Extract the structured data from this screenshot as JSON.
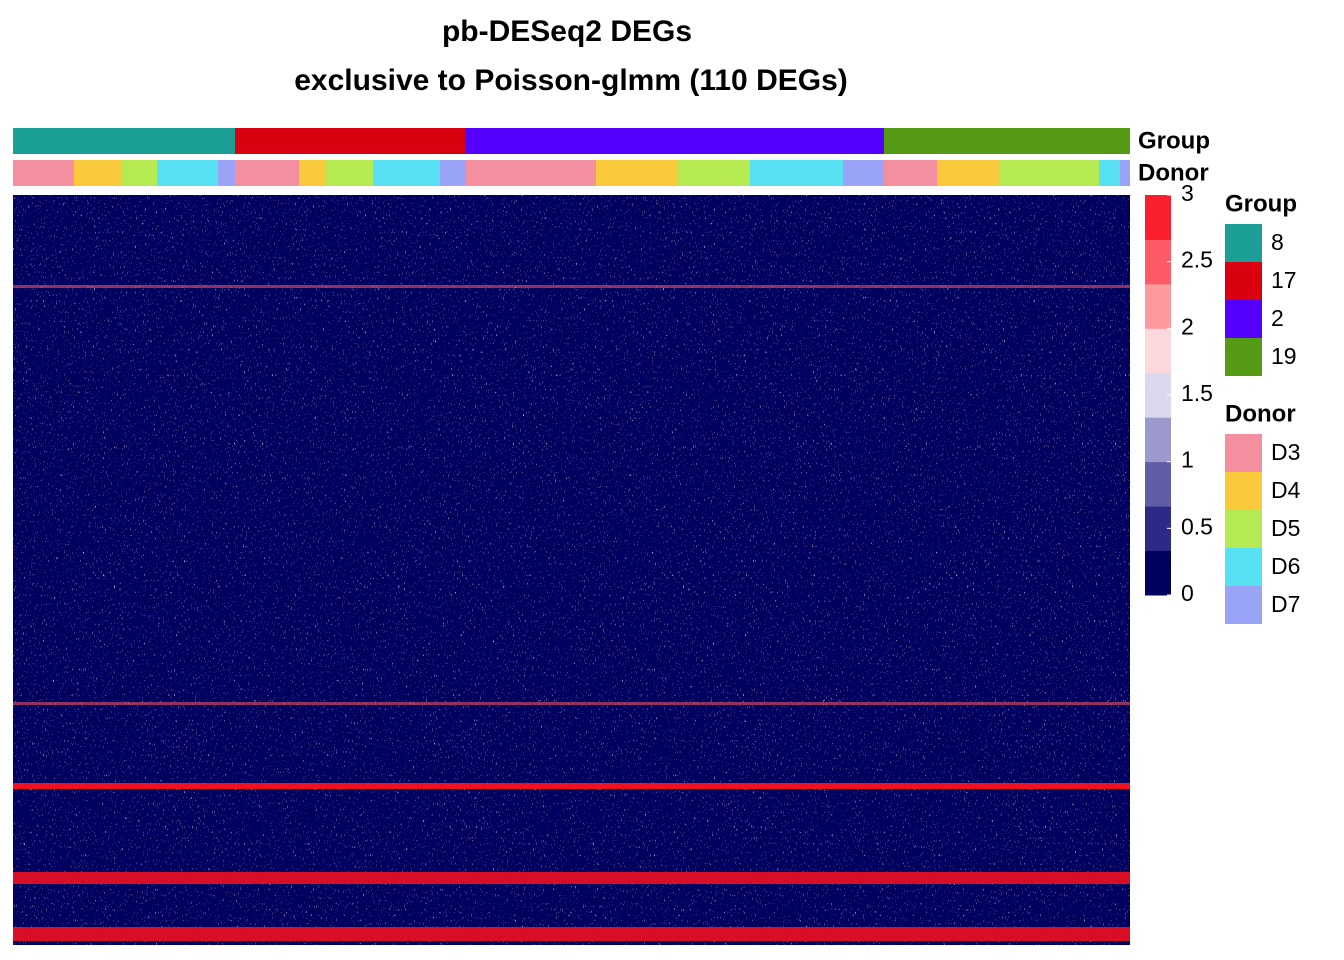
{
  "chart_data": {
    "type": "heatmap",
    "title": "pb-DESeq2 DEGs",
    "subtitle": "exclusive to Poisson-glmm (110 DEGs)",
    "colorbar": {
      "ylim": [
        0,
        3
      ],
      "yticks": [
        0,
        0.5,
        1,
        1.5,
        2,
        2.5,
        3
      ],
      "colors": [
        "#00005e",
        "#2c2a86",
        "#5f5ca8",
        "#9c99cc",
        "#d9d8ec",
        "#fdd8dc",
        "#fd9aa0",
        "#fc5a64",
        "#fa1e2e"
      ]
    },
    "annotations": [
      {
        "name": "Group",
        "levels": [
          {
            "label": "8",
            "color": "#1a9e96"
          },
          {
            "label": "17",
            "color": "#d90010"
          },
          {
            "label": "2",
            "color": "#5500ff"
          },
          {
            "label": "19",
            "color": "#559a15"
          }
        ],
        "segments": [
          {
            "level": "8",
            "cells": 222
          },
          {
            "level": "17",
            "cells": 230
          },
          {
            "level": "2",
            "cells": 419
          },
          {
            "level": "19",
            "cells": 246
          }
        ]
      },
      {
        "name": "Donor",
        "levels": [
          {
            "label": "D3",
            "color": "#f48fa0"
          },
          {
            "label": "D4",
            "color": "#fbc93c"
          },
          {
            "label": "D5",
            "color": "#b5ea52"
          },
          {
            "label": "D6",
            "color": "#57e1f2"
          },
          {
            "label": "D7",
            "color": "#9aa4f7"
          }
        ],
        "segments": [
          {
            "level": "D3",
            "cells": 61
          },
          {
            "level": "D4",
            "cells": 47
          },
          {
            "level": "D5",
            "cells": 36
          },
          {
            "level": "D6",
            "cells": 61
          },
          {
            "level": "D7",
            "cells": 17
          },
          {
            "level": "D3",
            "cells": 64
          },
          {
            "level": "D4",
            "cells": 27
          },
          {
            "level": "D5",
            "cells": 47
          },
          {
            "level": "D6",
            "cells": 67
          },
          {
            "level": "D7",
            "cells": 25
          },
          {
            "level": "D3",
            "cells": 131
          },
          {
            "level": "D4",
            "cells": 82
          },
          {
            "level": "D5",
            "cells": 72
          },
          {
            "level": "D6",
            "cells": 93
          },
          {
            "level": "D7",
            "cells": 41
          },
          {
            "level": "D3",
            "cells": 53
          },
          {
            "level": "D4",
            "cells": 62
          },
          {
            "level": "D5",
            "cells": 100
          },
          {
            "level": "D6",
            "cells": 21
          },
          {
            "level": "D7",
            "cells": 10
          }
        ]
      }
    ]
  }
}
